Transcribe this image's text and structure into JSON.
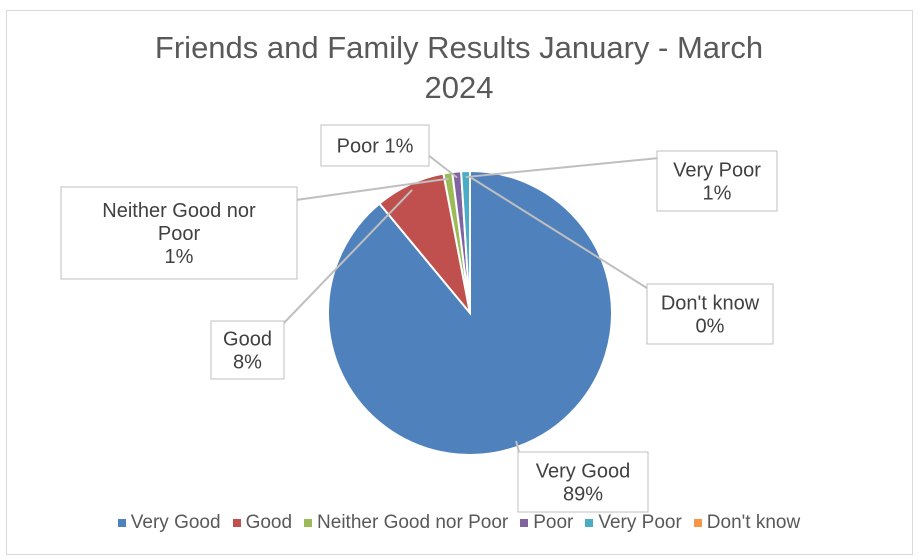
{
  "chart_data": {
    "type": "pie",
    "title": "Friends and Family Results January - March\n2024",
    "categories": [
      "Very Good",
      "Good",
      "Neither Good nor Poor",
      "Poor",
      "Very Poor",
      "Don't know"
    ],
    "values": [
      89,
      8,
      1,
      1,
      1,
      0
    ],
    "data_labels": [
      "Very Good\n89%",
      "Good\n8%",
      "Neither Good nor\nPoor\n1%",
      "Poor 1%",
      "Very Poor\n1%",
      "Don't know\n0%"
    ],
    "colors": [
      "#4f81bd",
      "#c0504d",
      "#9bbb59",
      "#8064a2",
      "#4bacc6",
      "#f79646"
    ],
    "legend_position": "bottom",
    "start_angle_deg": 0,
    "direction": "clockwise"
  }
}
